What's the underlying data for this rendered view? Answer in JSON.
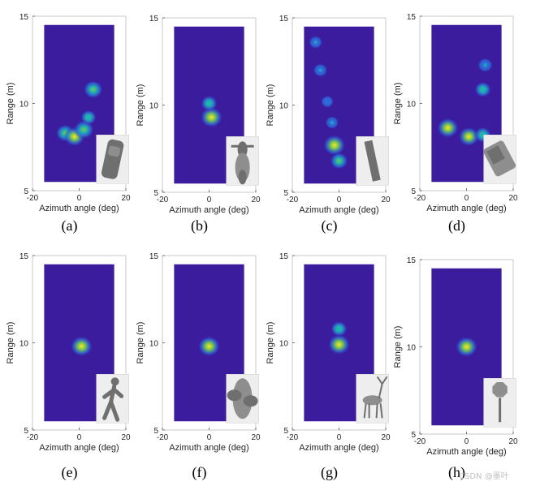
{
  "figure": {
    "background": "#ffffff",
    "heatmap_background": "#3b1c9c",
    "colormap": [
      "#3b1c9c",
      "#2c6fe0",
      "#1fb7b0",
      "#74cc4f",
      "#fde725"
    ],
    "watermark": "CSDN @墨叶"
  },
  "chart_data": [
    {
      "type": "heatmap",
      "caption": "(a)",
      "xlabel": "Azimuth angle (deg)",
      "ylabel": "Range (m)",
      "xlim": [
        -20,
        20
      ],
      "ylim": [
        5,
        15
      ],
      "xticks": [
        "-20",
        "0",
        "20"
      ],
      "yticks": [
        "5",
        "10",
        "15"
      ],
      "image_extent": {
        "x": [
          -15,
          15
        ],
        "y": [
          5.5,
          14.5
        ]
      },
      "inset": "car",
      "blobs": [
        {
          "az": 6,
          "range": 10.8,
          "intensity": 0.8
        },
        {
          "az": -6,
          "range": 8.3,
          "intensity": 0.75
        },
        {
          "az": -2,
          "range": 8.1,
          "intensity": 0.9
        },
        {
          "az": 2,
          "range": 8.5,
          "intensity": 0.85
        },
        {
          "az": 4,
          "range": 9.2,
          "intensity": 0.55
        }
      ]
    },
    {
      "type": "heatmap",
      "caption": "(b)",
      "xlabel": "Azimuth angle (deg)",
      "ylabel": "Range (m)",
      "xlim": [
        -20,
        20
      ],
      "ylim": [
        5,
        15
      ],
      "xticks": [
        "-20",
        "0",
        "20"
      ],
      "yticks": [
        "5",
        "10",
        "15"
      ],
      "image_extent": {
        "x": [
          -15,
          15
        ],
        "y": [
          5.5,
          14.5
        ]
      },
      "inset": "motorcycle",
      "blobs": [
        {
          "az": 1,
          "range": 9.3,
          "intensity": 1.0
        },
        {
          "az": 0,
          "range": 10.1,
          "intensity": 0.6
        }
      ]
    },
    {
      "type": "heatmap",
      "caption": "(c)",
      "xlabel": "Azimuth angle (deg)",
      "ylabel": "Range (m)",
      "xlim": [
        -20,
        20
      ],
      "ylim": [
        5,
        15
      ],
      "xticks": [
        "-20",
        "0",
        "20"
      ],
      "yticks": [
        "5",
        "10",
        "15"
      ],
      "image_extent": {
        "x": [
          -15,
          15
        ],
        "y": [
          5.5,
          14.5
        ]
      },
      "inset": "pole",
      "blobs": [
        {
          "az": -10,
          "range": 13.6,
          "intensity": 0.4
        },
        {
          "az": -8,
          "range": 12.0,
          "intensity": 0.45
        },
        {
          "az": -5,
          "range": 10.2,
          "intensity": 0.35
        },
        {
          "az": -3,
          "range": 9.0,
          "intensity": 0.4
        },
        {
          "az": -2,
          "range": 7.7,
          "intensity": 1.0
        },
        {
          "az": 0,
          "range": 6.8,
          "intensity": 0.7
        }
      ]
    },
    {
      "type": "heatmap",
      "caption": "(d)",
      "xlabel": "Azimuth angle (deg)",
      "ylabel": "Range (m)",
      "xlim": [
        -20,
        20
      ],
      "ylim": [
        5,
        15
      ],
      "xticks": [
        "-20",
        "0",
        "20"
      ],
      "yticks": [
        "5",
        "10",
        "15"
      ],
      "image_extent": {
        "x": [
          -15,
          15
        ],
        "y": [
          5.5,
          14.5
        ]
      },
      "inset": "truck",
      "blobs": [
        {
          "az": 8,
          "range": 12.2,
          "intensity": 0.5
        },
        {
          "az": 7,
          "range": 10.8,
          "intensity": 0.6
        },
        {
          "az": -8,
          "range": 8.6,
          "intensity": 0.95
        },
        {
          "az": 1,
          "range": 8.1,
          "intensity": 0.9
        },
        {
          "az": 7,
          "range": 8.2,
          "intensity": 0.6
        }
      ]
    },
    {
      "type": "heatmap",
      "caption": "(e)",
      "xlabel": "Azimuth angle (deg)",
      "ylabel": "Range (m)",
      "xlim": [
        -20,
        20
      ],
      "ylim": [
        5,
        15
      ],
      "xticks": [
        "-20",
        "0",
        "20"
      ],
      "yticks": [
        "5",
        "10",
        "15"
      ],
      "image_extent": {
        "x": [
          -15,
          15
        ],
        "y": [
          5.5,
          14.5
        ]
      },
      "inset": "pedestrian",
      "blobs": [
        {
          "az": 1,
          "range": 9.8,
          "intensity": 1.0
        }
      ]
    },
    {
      "type": "heatmap",
      "caption": "(f)",
      "xlabel": "Azimuth angle (deg)",
      "ylabel": "Range (m)",
      "xlim": [
        -20,
        20
      ],
      "ylim": [
        5,
        15
      ],
      "xticks": [
        "-20",
        "0",
        "20"
      ],
      "yticks": [
        "5",
        "10",
        "15"
      ],
      "image_extent": {
        "x": [
          -15,
          15
        ],
        "y": [
          5.5,
          14.5
        ]
      },
      "inset": "tumbleweed",
      "blobs": [
        {
          "az": 0,
          "range": 9.8,
          "intensity": 1.0
        }
      ]
    },
    {
      "type": "heatmap",
      "caption": "(g)",
      "xlabel": "Azimuth angle (deg)",
      "ylabel": "Range (m)",
      "xlim": [
        -20,
        20
      ],
      "ylim": [
        5,
        15
      ],
      "xticks": [
        "-20",
        "0",
        "20"
      ],
      "yticks": [
        "5",
        "10",
        "15"
      ],
      "image_extent": {
        "x": [
          -15,
          15
        ],
        "y": [
          5.5,
          14.5
        ]
      },
      "inset": "deer",
      "blobs": [
        {
          "az": 0,
          "range": 9.9,
          "intensity": 1.0
        },
        {
          "az": 0,
          "range": 10.8,
          "intensity": 0.6
        }
      ]
    },
    {
      "type": "heatmap",
      "caption": "(h)",
      "xlabel": "Azimuth angle (deg)",
      "ylabel": "Range (m)",
      "xlim": [
        -20,
        20
      ],
      "ylim": [
        5,
        15
      ],
      "xticks": [
        "-20",
        "0",
        "20"
      ],
      "yticks": [
        "5",
        "10",
        "15"
      ],
      "image_extent": {
        "x": [
          -15,
          15
        ],
        "y": [
          5.5,
          14.5
        ]
      },
      "inset": "stop-sign",
      "blobs": [
        {
          "az": 0,
          "range": 10.0,
          "intensity": 1.0
        }
      ]
    }
  ]
}
